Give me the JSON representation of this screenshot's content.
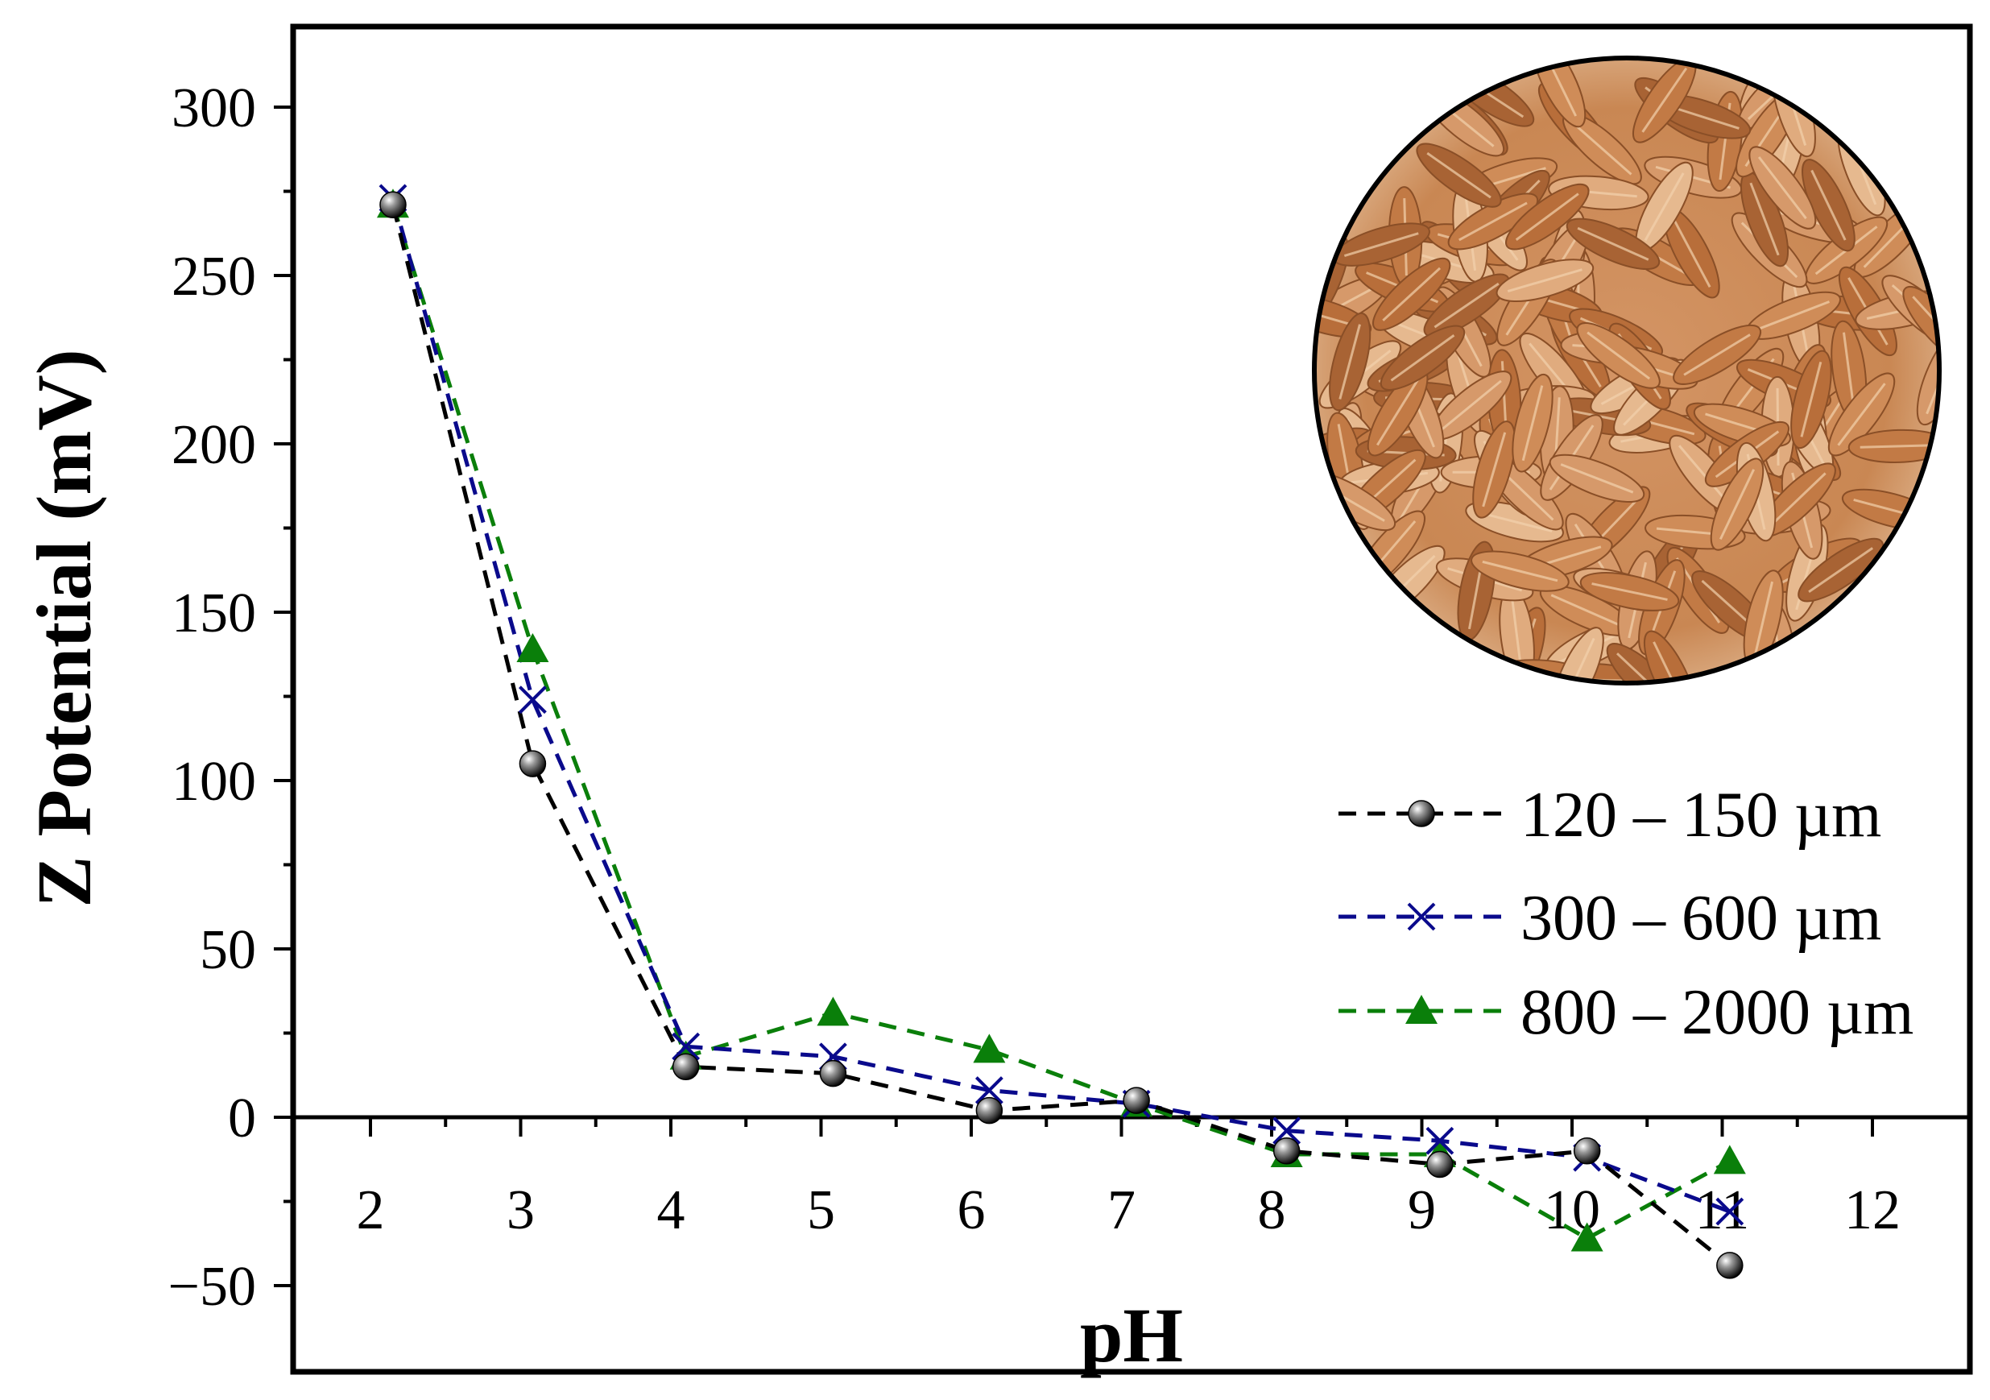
{
  "chart_data": {
    "type": "line",
    "title": "",
    "xlabel": "pH",
    "ylabel": "Z Potential (mV)",
    "xlim": [
      1.5,
      12.5
    ],
    "ylim": [
      -75,
      325
    ],
    "xticks": [
      "2",
      "3",
      "4",
      "5",
      "6",
      "7",
      "8",
      "9",
      "10",
      "11",
      "12"
    ],
    "yticks": [
      "300",
      "250",
      "200",
      "150",
      "100",
      "50",
      "0",
      "−50"
    ],
    "grid": false,
    "legend_position": "center-right",
    "series": [
      {
        "name": "120 – 150 µm",
        "color": "#000000",
        "marker": "sphere",
        "line_style": "dashed",
        "x": [
          2.15,
          3.08,
          4.1,
          5.08,
          6.12,
          7.1,
          8.1,
          9.12,
          10.1,
          11.05
        ],
        "y": [
          271,
          105,
          15,
          13,
          2,
          5,
          -10,
          -14,
          -10,
          -44
        ]
      },
      {
        "name": "300 – 600 µm",
        "color": "#0a0a8c",
        "marker": "x",
        "line_style": "dashed",
        "x": [
          2.15,
          3.08,
          4.1,
          5.08,
          6.12,
          7.1,
          8.1,
          9.12,
          10.1,
          11.05
        ],
        "y": [
          273,
          124,
          21,
          18,
          8,
          4,
          -4,
          -7,
          -12,
          -28
        ]
      },
      {
        "name": "800 – 2000 µm",
        "color": "#0a7f0a",
        "marker": "triangle",
        "line_style": "dashed",
        "x": [
          2.15,
          3.08,
          4.1,
          5.08,
          6.12,
          7.1,
          8.1,
          9.12,
          10.1,
          11.05
        ],
        "y": [
          271,
          139,
          18,
          31,
          20,
          4,
          -11,
          -11,
          -36,
          -13
        ]
      }
    ]
  },
  "inset": {
    "icon": "rice-husk-photo-icon"
  }
}
